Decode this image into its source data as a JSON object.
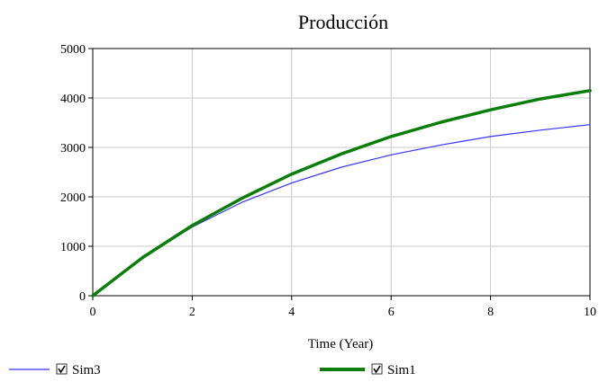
{
  "chart_data": {
    "type": "line",
    "title": "Producción",
    "xlabel": "Time (Year)",
    "ylabel": "",
    "xlim": [
      0,
      10
    ],
    "ylim": [
      0,
      5000
    ],
    "x_ticks": [
      0,
      2,
      4,
      6,
      8,
      10
    ],
    "y_ticks": [
      0,
      1000,
      2000,
      3000,
      4000,
      5000
    ],
    "grid": true,
    "legend_position": "bottom",
    "x": [
      0,
      1,
      2,
      3,
      4,
      5,
      6,
      7,
      8,
      9,
      10
    ],
    "series": [
      {
        "name": "Sim3",
        "color": "#3333ff",
        "line_style": "thin",
        "checked": true,
        "values": [
          0,
          760,
          1390,
          1890,
          2280,
          2600,
          2850,
          3050,
          3220,
          3350,
          3460
        ]
      },
      {
        "name": "Sim1",
        "color": "#0a7d0a",
        "line_style": "thick",
        "checked": true,
        "values": [
          0,
          770,
          1420,
          1970,
          2460,
          2870,
          3220,
          3510,
          3760,
          3980,
          4150
        ]
      }
    ]
  }
}
